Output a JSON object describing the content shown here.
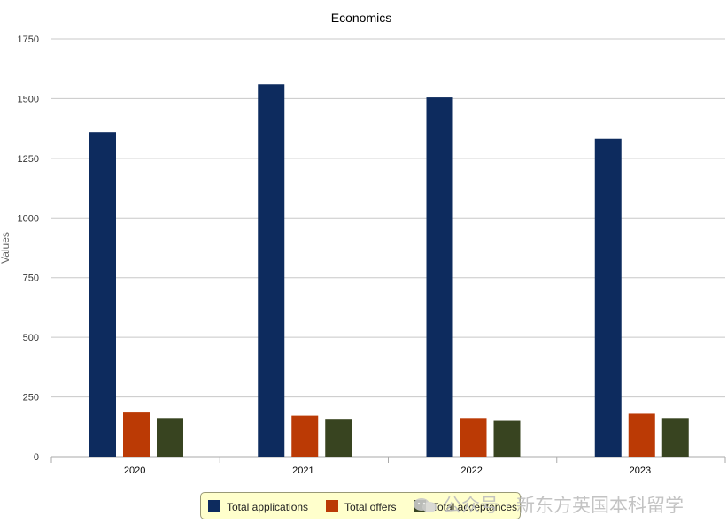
{
  "chart_data": {
    "type": "bar",
    "title": "Economics",
    "xlabel": "",
    "ylabel": "Values",
    "categories": [
      "2020",
      "2021",
      "2022",
      "2023"
    ],
    "ylim": [
      0,
      1750
    ],
    "yticks": [
      0,
      250,
      500,
      750,
      1000,
      1250,
      1500,
      1750
    ],
    "ytick_labels": [
      "0",
      "250",
      "500",
      "750",
      "1000",
      "1250",
      "1500",
      "1750"
    ],
    "grid": true,
    "legend_position": "bottom",
    "series": [
      {
        "name": "Total applications",
        "color": "#0d2b5e",
        "values": [
          1360,
          1560,
          1505,
          1332
        ]
      },
      {
        "name": "Total offers",
        "color": "#bb3a05",
        "values": [
          185,
          172,
          162,
          180
        ]
      },
      {
        "name": "Total acceptances",
        "color": "#384420",
        "values": [
          162,
          155,
          150,
          162
        ]
      }
    ]
  },
  "watermark": {
    "text": "公众号 · 新东方英国本科留学",
    "icon": "wechat-icon"
  }
}
